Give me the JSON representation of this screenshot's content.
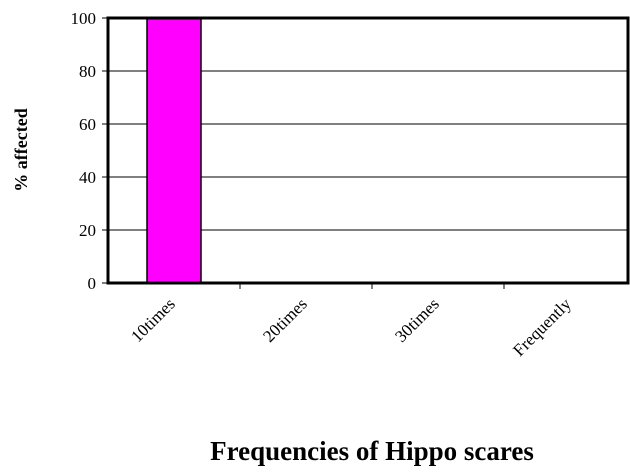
{
  "chart_data": {
    "type": "bar",
    "title": "Frequencies of Hippo scares",
    "y_label": "% affected",
    "categories": [
      "10times",
      "20times",
      "30times",
      "Frequently"
    ],
    "values": [
      100,
      0,
      0,
      0
    ],
    "color": "#ff00ff",
    "ylim": [
      0,
      100
    ],
    "yticks": [
      0,
      20,
      40,
      60,
      80,
      100
    ],
    "grid": true
  }
}
